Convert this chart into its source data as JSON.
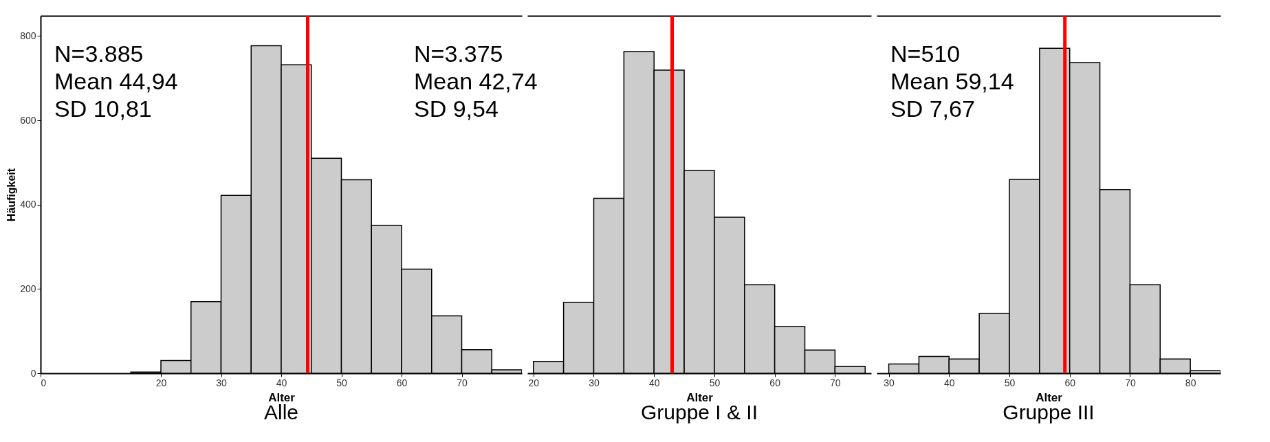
{
  "chart_data": [
    {
      "type": "histogram",
      "title": "Alle",
      "xlabel": "Alter",
      "ylabel": "Häufigkeit",
      "annotations": [
        "N=3.885",
        "Mean 44,94",
        "SD 10,81"
      ],
      "bins": [
        15,
        20,
        25,
        30,
        35,
        40,
        45,
        50,
        55,
        60,
        65,
        70,
        75,
        80
      ],
      "values": [
        3,
        30,
        170,
        422,
        777,
        732,
        510,
        459,
        351,
        247,
        136,
        56,
        8
      ],
      "color": "#cccccc",
      "xlim": [
        0,
        80
      ],
      "xticks": [
        0,
        20,
        30,
        40,
        50,
        60,
        70
      ],
      "ylim": [
        0,
        848
      ],
      "yticks": [
        0,
        200,
        400,
        600,
        800
      ],
      "ref_lines": [
        {
          "axis": "x",
          "value": 44.4,
          "color": "#ff0000"
        }
      ]
    },
    {
      "type": "histogram",
      "title": "Gruppe I & II",
      "xlabel": "Alter",
      "annotations": [
        "N=3.375",
        "Mean 42,74",
        "SD 9,54"
      ],
      "bins": [
        20,
        25,
        30,
        35,
        40,
        45,
        50,
        55,
        60,
        65,
        70,
        75
      ],
      "values": [
        28,
        168,
        415,
        763,
        719,
        481,
        370,
        210,
        111,
        55,
        16
      ],
      "color": "#cccccc",
      "xlim": [
        19,
        76
      ],
      "xticks": [
        20,
        30,
        40,
        50,
        60,
        70
      ],
      "ylim": [
        0,
        848
      ],
      "tick_labels": "x",
      "ref_lines": [
        {
          "axis": "x",
          "value": 43,
          "color": "#ff0000"
        }
      ]
    },
    {
      "type": "histogram",
      "title": "Gruppe III",
      "xlabel": "Alter",
      "annotations": [
        "N=510",
        "Mean 59,14",
        "SD 7,67"
      ],
      "bins": [
        30,
        35,
        40,
        45,
        50,
        55,
        60,
        65,
        70,
        75,
        80,
        85
      ],
      "values": [
        22,
        40,
        34,
        142,
        460,
        771,
        737,
        436,
        210,
        34,
        6
      ],
      "color": "#cccccc",
      "xlim": [
        28,
        85
      ],
      "xticks": [
        30,
        40,
        50,
        60,
        70,
        80
      ],
      "ylim": [
        0,
        848
      ],
      "tick_labels": "x",
      "ref_lines": [
        {
          "axis": "x",
          "value": 59.2,
          "color": "#ff0000"
        }
      ]
    }
  ]
}
